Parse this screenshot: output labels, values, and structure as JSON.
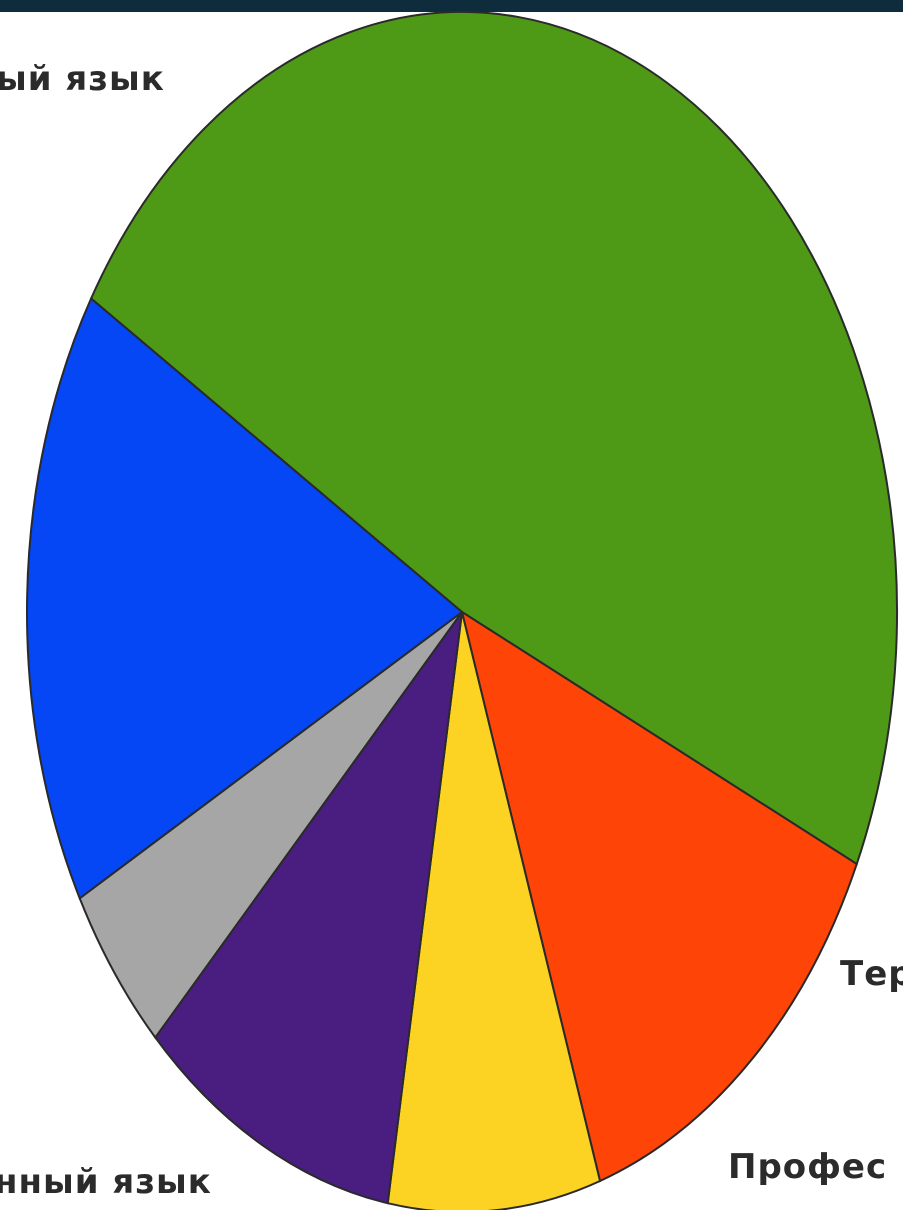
{
  "chart_data": {
    "type": "pie",
    "slices": [
      {
        "label": "",
        "value": 52.0,
        "color": "#4e9a16"
      },
      {
        "label": "",
        "value": 14.0,
        "color": "#ff4407"
      },
      {
        "label": "",
        "value": 8.5,
        "color": "#fdd323"
      },
      {
        "label": "",
        "value": 10.5,
        "color": "#4a1d80"
      },
      {
        "label": "",
        "value": 5.0,
        "color": "#a6a6a6"
      },
      {
        "label": "",
        "value": 18.0,
        "color": "#0546f5"
      }
    ],
    "text_labels": [
      "ый язык",
      "Тер",
      "Профес",
      "нный язык"
    ]
  },
  "colors": {
    "topbar": "#0f2c3c",
    "background": "#ffffff"
  }
}
